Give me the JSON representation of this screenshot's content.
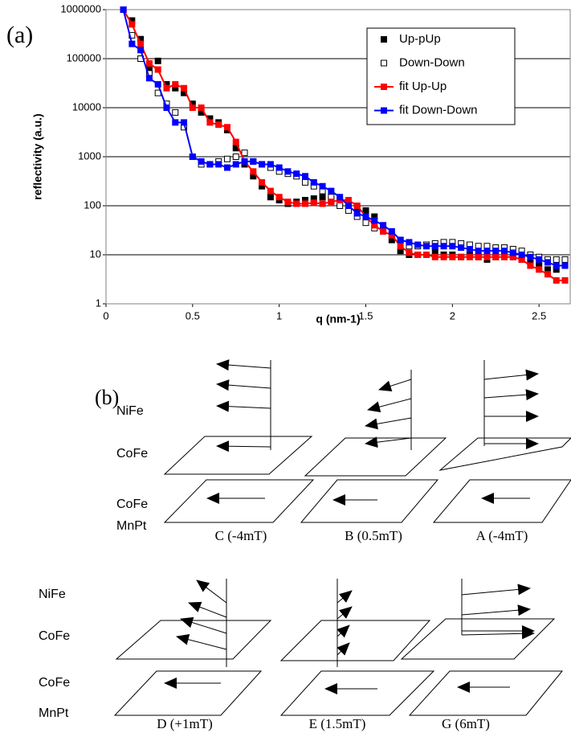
{
  "chart_data": {
    "type": "line",
    "panel_label": "(a)",
    "xlabel": "q (nm-1)",
    "ylabel": "reflectivity (a.u.)",
    "log_y": true,
    "grid": true,
    "legend": "top-right",
    "xlim": [
      0,
      2.68
    ],
    "xticks": [
      0,
      0.5,
      1,
      1.5,
      2,
      2.5
    ],
    "ylim": [
      1,
      1000000
    ],
    "yticks": [
      1,
      10,
      100,
      1000,
      10000,
      100000,
      1000000
    ],
    "x": [
      0.1,
      0.15,
      0.2,
      0.25,
      0.3,
      0.35,
      0.4,
      0.45,
      0.5,
      0.55,
      0.6,
      0.65,
      0.7,
      0.75,
      0.8,
      0.85,
      0.9,
      0.95,
      1,
      1.05,
      1.1,
      1.15,
      1.2,
      1.25,
      1.3,
      1.35,
      1.4,
      1.45,
      1.5,
      1.55,
      1.6,
      1.65,
      1.7,
      1.75,
      1.8,
      1.85,
      1.9,
      1.95,
      2,
      2.05,
      2.1,
      2.15,
      2.2,
      2.25,
      2.3,
      2.35,
      2.4,
      2.45,
      2.5,
      2.55,
      2.6,
      2.65
    ],
    "series": [
      {
        "name": "Up-pUp",
        "color": "#000000",
        "style": "filled-square",
        "values": [
          1000000,
          600000,
          250000,
          60000,
          90000,
          30000,
          25000,
          20000,
          12000,
          8000,
          6000,
          5000,
          3500,
          1500,
          700,
          400,
          250,
          150,
          130,
          110,
          120,
          130,
          140,
          150,
          130,
          120,
          100,
          90,
          80,
          60,
          35,
          20,
          12,
          10,
          10,
          10,
          12,
          10,
          10,
          9,
          10,
          9,
          8,
          9,
          10,
          9,
          8,
          7,
          6,
          5,
          5,
          6
        ]
      },
      {
        "name": "Down-Down",
        "color": "#000000",
        "style": "open-square",
        "values": [
          1000000,
          300000,
          100000,
          50000,
          20000,
          12000,
          8000,
          4000,
          1000,
          700,
          700,
          800,
          900,
          1000,
          1200,
          800,
          700,
          600,
          500,
          450,
          400,
          300,
          250,
          200,
          150,
          100,
          80,
          60,
          45,
          35,
          30,
          25,
          20,
          15,
          15,
          16,
          17,
          18,
          18,
          17,
          16,
          15,
          15,
          14,
          14,
          13,
          12,
          10,
          9,
          8,
          8,
          8
        ]
      },
      {
        "name": "fit Up-Up",
        "color": "#ff0000",
        "style": "line-square",
        "values": [
          1000000,
          500000,
          200000,
          80000,
          60000,
          25000,
          30000,
          25000,
          10000,
          10000,
          5000,
          4500,
          4000,
          2000,
          800,
          500,
          300,
          200,
          150,
          120,
          110,
          110,
          115,
          110,
          120,
          130,
          130,
          100,
          60,
          40,
          30,
          25,
          15,
          11,
          10,
          10,
          9,
          9,
          9,
          9,
          9,
          9,
          9,
          9,
          9,
          9,
          8,
          6,
          5,
          4,
          3,
          3
        ]
      },
      {
        "name": "fit Down-Down",
        "color": "#0000ff",
        "style": "line-square",
        "values": [
          1000000,
          200000,
          150000,
          40000,
          30000,
          10000,
          5000,
          5000,
          1000,
          800,
          700,
          700,
          600,
          700,
          800,
          800,
          700,
          700,
          600,
          500,
          450,
          400,
          300,
          250,
          200,
          150,
          100,
          70,
          60,
          50,
          40,
          30,
          20,
          18,
          16,
          15,
          15,
          15,
          15,
          14,
          13,
          12,
          12,
          12,
          12,
          11,
          10,
          9,
          8,
          7,
          6,
          6
        ]
      }
    ]
  },
  "diagram": {
    "label": "(b)",
    "rows": [
      {
        "layers": [
          "NiFe",
          "CoFe",
          "CoFe",
          "MnPt"
        ],
        "states": [
          "C (-4mT)",
          "B (0.5mT)",
          "A (-4mT)"
        ]
      },
      {
        "layers": [
          "NiFe",
          "CoFe",
          "CoFe",
          "MnPt"
        ],
        "states": [
          "D (+1mT)",
          "E (1.5mT)",
          "G (6mT)"
        ]
      }
    ]
  }
}
